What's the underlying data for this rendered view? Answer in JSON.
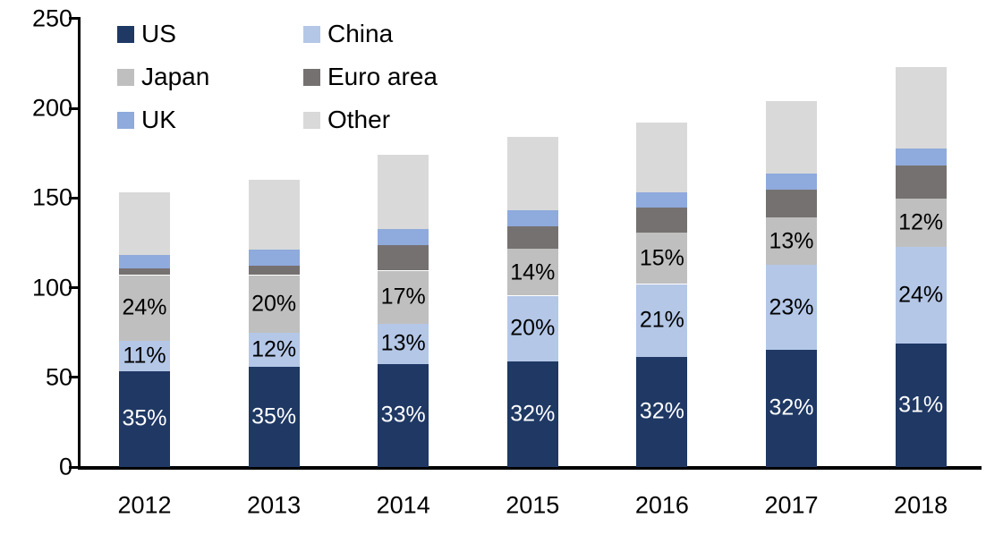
{
  "chart_data": {
    "type": "bar",
    "stacked": true,
    "title": "",
    "xlabel": "",
    "ylabel": "",
    "categories": [
      "2012",
      "2013",
      "2014",
      "2015",
      "2016",
      "2017",
      "2018"
    ],
    "series": [
      {
        "name": "US",
        "color": "#1F3864",
        "label_text_color": "#FFFFFF",
        "values": [
          53.5,
          56,
          57.5,
          59,
          61.5,
          65.5,
          69
        ],
        "percent_labels": [
          "35%",
          "35%",
          "33%",
          "32%",
          "32%",
          "32%",
          "31%"
        ]
      },
      {
        "name": "China",
        "color": "#B4C7E7",
        "label_text_color": "#000000",
        "values": [
          17,
          19,
          22.5,
          36.5,
          40.5,
          47,
          53.5
        ],
        "percent_labels": [
          "11%",
          "12%",
          "13%",
          "20%",
          "21%",
          "23%",
          "24%"
        ]
      },
      {
        "name": "Japan",
        "color": "#BFBFBF",
        "label_text_color": "#000000",
        "values": [
          36.5,
          32,
          29.5,
          26,
          28.5,
          26.5,
          27
        ],
        "percent_labels": [
          "24%",
          "20%",
          "17%",
          "14%",
          "15%",
          "13%",
          "12%"
        ]
      },
      {
        "name": "Euro area",
        "color": "#767171",
        "label_text_color": "#000000",
        "values": [
          3.5,
          5,
          14,
          12.5,
          14,
          15.5,
          18.5
        ],
        "percent_labels": [
          null,
          null,
          null,
          null,
          null,
          null,
          null
        ]
      },
      {
        "name": "UK",
        "color": "#8FAADC",
        "label_text_color": "#000000",
        "values": [
          7.5,
          9,
          9,
          9,
          8.5,
          9,
          9.5
        ],
        "percent_labels": [
          null,
          null,
          null,
          null,
          null,
          null,
          null
        ]
      },
      {
        "name": "Other",
        "color": "#D9D9D9",
        "label_text_color": "#000000",
        "values": [
          35,
          39,
          41.5,
          41,
          39,
          40.5,
          45.5
        ],
        "percent_labels": [
          null,
          null,
          null,
          null,
          null,
          null,
          null
        ]
      }
    ],
    "totals": [
      153,
      160,
      174,
      184,
      192,
      204,
      223
    ],
    "ylim": [
      0,
      250
    ],
    "yticks": [
      0,
      50,
      100,
      150,
      200,
      250
    ],
    "legend": {
      "position": "top-left",
      "columns": 2,
      "entries": [
        "US",
        "China",
        "Japan",
        "Euro area",
        "UK",
        "Other"
      ]
    },
    "grid": false,
    "axis_color": "#000000",
    "background_color": "#FFFFFF"
  }
}
